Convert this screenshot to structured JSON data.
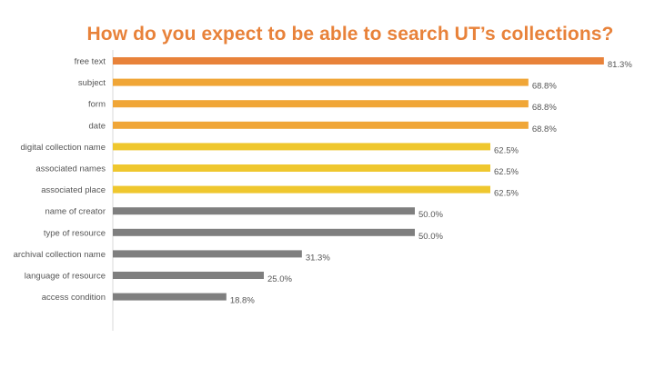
{
  "chart_data": {
    "type": "bar",
    "orientation": "horizontal",
    "title": "How do you expect to be able to search UT’s collections?",
    "categories": [
      "free text",
      "subject",
      "form",
      "date",
      "digital collection name",
      "associated names",
      "associated place",
      "name of creator",
      "type of resource",
      "archival collection name",
      "language of resource",
      "access condition"
    ],
    "values": [
      81.3,
      68.8,
      68.8,
      68.8,
      62.5,
      62.5,
      62.5,
      50.0,
      50.0,
      31.3,
      25.0,
      18.8
    ],
    "value_labels": [
      "81.3%",
      "68.8%",
      "68.8%",
      "68.8%",
      "62.5%",
      "62.5%",
      "62.5%",
      "50.0%",
      "50.0%",
      "31.3%",
      "25.0%",
      "18.8%"
    ],
    "bar_colors": [
      "#e8823a",
      "#f0a637",
      "#f0a637",
      "#f0a637",
      "#efc72e",
      "#efc72e",
      "#efc72e",
      "#7f7f7f",
      "#7f7f7f",
      "#7f7f7f",
      "#7f7f7f",
      "#7f7f7f"
    ],
    "xlim": [
      0,
      100
    ],
    "xlabel": "",
    "ylabel": "",
    "grid": false,
    "legend": "none"
  },
  "colors": {
    "title": "#e8823a",
    "axis": "#d9d9d9",
    "text": "#555555"
  }
}
